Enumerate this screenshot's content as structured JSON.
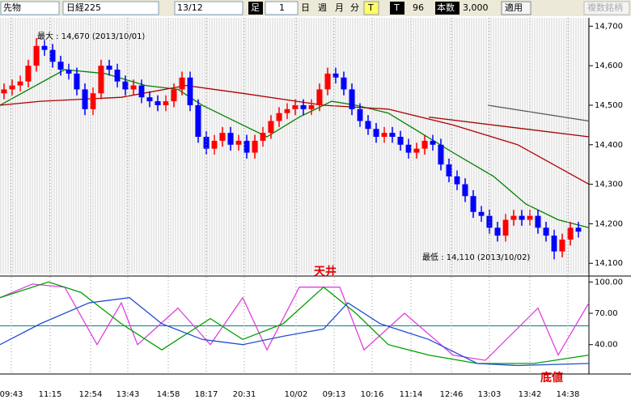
{
  "toolbar": {
    "symbol": "先物",
    "index": "日経225",
    "contract": "13/12",
    "bar_label": "足",
    "bar_value": "1",
    "day": "日",
    "week": "週",
    "month": "月",
    "minute": "分",
    "t1": "T",
    "t2": "T",
    "count": "96",
    "count_label": "本数",
    "count_max": "3,000",
    "apply": "適用",
    "multi": "複数銘柄"
  },
  "chart_data": [
    {
      "type": "candlestick",
      "up_color": "#ff0000",
      "down_color": "#0000ff",
      "xlim": [
        -0.5,
        72.3
      ],
      "ylim": [
        14080,
        14715
      ],
      "yticks": [
        {
          "value": 14100,
          "label": "14,100"
        },
        {
          "value": 14200,
          "label": "14,200"
        },
        {
          "value": 14300,
          "label": "14,300"
        },
        {
          "value": 14400,
          "label": "14,400"
        },
        {
          "value": 14500,
          "label": "14,500"
        },
        {
          "value": 14600,
          "label": "14,600"
        },
        {
          "value": 14700,
          "label": "14,700"
        }
      ],
      "candles": [
        [
          14530,
          14555,
          14515,
          14540
        ],
        [
          14540,
          14565,
          14525,
          14550
        ],
        [
          14550,
          14575,
          14535,
          14560
        ],
        [
          14560,
          14615,
          14545,
          14600
        ],
        [
          14600,
          14670,
          14585,
          14650
        ],
        [
          14650,
          14665,
          14625,
          14640
        ],
        [
          14640,
          14655,
          14595,
          14610
        ],
        [
          14610,
          14625,
          14575,
          14590
        ],
        [
          14590,
          14605,
          14565,
          14580
        ],
        [
          14580,
          14595,
          14525,
          14540
        ],
        [
          14540,
          14555,
          14475,
          14490
        ],
        [
          14490,
          14545,
          14475,
          14530
        ],
        [
          14530,
          14615,
          14515,
          14600
        ],
        [
          14600,
          14615,
          14575,
          14590
        ],
        [
          14590,
          14605,
          14545,
          14560
        ],
        [
          14560,
          14575,
          14525,
          14540
        ],
        [
          14540,
          14565,
          14525,
          14550
        ],
        [
          14550,
          14565,
          14505,
          14520
        ],
        [
          14520,
          14535,
          14495,
          14510
        ],
        [
          14510,
          14525,
          14485,
          14500
        ],
        [
          14500,
          14525,
          14485,
          14510
        ],
        [
          14510,
          14555,
          14495,
          14540
        ],
        [
          14540,
          14585,
          14525,
          14570
        ],
        [
          14570,
          14585,
          14485,
          14500
        ],
        [
          14500,
          14515,
          14405,
          14420
        ],
        [
          14420,
          14435,
          14375,
          14390
        ],
        [
          14390,
          14425,
          14375,
          14410
        ],
        [
          14410,
          14445,
          14395,
          14430
        ],
        [
          14430,
          14445,
          14385,
          14400
        ],
        [
          14400,
          14425,
          14385,
          14410
        ],
        [
          14410,
          14425,
          14365,
          14380
        ],
        [
          14380,
          14425,
          14365,
          14410
        ],
        [
          14410,
          14445,
          14395,
          14430
        ],
        [
          14430,
          14475,
          14415,
          14460
        ],
        [
          14460,
          14495,
          14445,
          14480
        ],
        [
          14480,
          14505,
          14465,
          14490
        ],
        [
          14490,
          14515,
          14475,
          14500
        ],
        [
          14500,
          14515,
          14475,
          14490
        ],
        [
          14490,
          14515,
          14475,
          14500
        ],
        [
          14500,
          14555,
          14485,
          14540
        ],
        [
          14540,
          14595,
          14525,
          14580
        ],
        [
          14580,
          14595,
          14555,
          14570
        ],
        [
          14570,
          14585,
          14525,
          14540
        ],
        [
          14540,
          14555,
          14475,
          14490
        ],
        [
          14490,
          14505,
          14445,
          14460
        ],
        [
          14460,
          14475,
          14425,
          14440
        ],
        [
          14440,
          14455,
          14405,
          14420
        ],
        [
          14420,
          14445,
          14405,
          14430
        ],
        [
          14430,
          14445,
          14405,
          14420
        ],
        [
          14420,
          14435,
          14385,
          14400
        ],
        [
          14400,
          14415,
          14365,
          14380
        ],
        [
          14380,
          14405,
          14365,
          14390
        ],
        [
          14390,
          14425,
          14375,
          14410
        ],
        [
          14410,
          14425,
          14385,
          14400
        ],
        [
          14400,
          14415,
          14335,
          14350
        ],
        [
          14350,
          14365,
          14305,
          14320
        ],
        [
          14320,
          14335,
          14285,
          14300
        ],
        [
          14300,
          14315,
          14255,
          14270
        ],
        [
          14270,
          14285,
          14215,
          14230
        ],
        [
          14230,
          14245,
          14205,
          14220
        ],
        [
          14220,
          14235,
          14175,
          14190
        ],
        [
          14190,
          14205,
          14155,
          14170
        ],
        [
          14170,
          14225,
          14155,
          14210
        ],
        [
          14210,
          14235,
          14195,
          14220
        ],
        [
          14220,
          14235,
          14195,
          14210
        ],
        [
          14210,
          14235,
          14195,
          14220
        ],
        [
          14220,
          14235,
          14175,
          14190
        ],
        [
          14190,
          14205,
          14155,
          14170
        ],
        [
          14170,
          14185,
          14110,
          14130
        ],
        [
          14130,
          14175,
          14115,
          14160
        ],
        [
          14160,
          14205,
          14145,
          14190
        ],
        [
          14190,
          14205,
          14165,
          14180
        ]
      ],
      "series": [
        {
          "color": "#008000",
          "x": [
            -0.5,
            7.5,
            12.5,
            17.5,
            21.5,
            24.5,
            29.5,
            32.5,
            36.5,
            40.5,
            43.5,
            47.5,
            51.5,
            55.5,
            60.5,
            64.5,
            68.5,
            72.3
          ],
          "values": [
            14500,
            14590,
            14580,
            14550,
            14540,
            14500,
            14450,
            14420,
            14470,
            14510,
            14500,
            14480,
            14430,
            14380,
            14320,
            14250,
            14210,
            14190
          ]
        },
        {
          "color": "#b00000",
          "x": [
            -0.5,
            4.5,
            14.5,
            22.5,
            29.5,
            39.5,
            47.5,
            55.5,
            63.5,
            72.3
          ],
          "values": [
            14500,
            14510,
            14520,
            14550,
            14530,
            14500,
            14490,
            14450,
            14400,
            14300
          ]
        },
        {
          "color": "#a00000",
          "x": [
            52.5,
            72.3
          ],
          "values": [
            14470,
            14420
          ]
        },
        {
          "color": "#555555",
          "x": [
            59.8,
            72.3
          ],
          "values": [
            14500,
            14460
          ]
        }
      ],
      "annotations": {
        "max": "最大 : 14,670 (2013/10/01)",
        "min": "最低 : 14,110 (2013/10/02)"
      }
    },
    {
      "type": "line",
      "xlim": [
        -0.5,
        72.3
      ],
      "ylim": [
        15,
        101
      ],
      "yticks": [
        {
          "value": 40,
          "label": "40.00"
        },
        {
          "value": 70,
          "label": "70.00"
        },
        {
          "value": 100,
          "label": "100.00"
        }
      ],
      "ref_level": 58,
      "ref_color": "#008080",
      "xticks": [
        {
          "value": 0.9,
          "label": "09:43"
        },
        {
          "value": 5.7,
          "label": "11:15"
        },
        {
          "value": 10.7,
          "label": "12:54"
        },
        {
          "value": 15.3,
          "label": "13:43"
        },
        {
          "value": 20.3,
          "label": "14:58"
        },
        {
          "value": 25,
          "label": "18:17"
        },
        {
          "value": 29.7,
          "label": "20:31"
        },
        {
          "value": 36.1,
          "label": "10/02"
        },
        {
          "value": 40.8,
          "label": "09:13"
        },
        {
          "value": 45.5,
          "label": "10:16"
        },
        {
          "value": 50.3,
          "label": "11:14"
        },
        {
          "value": 55.3,
          "label": "12:46"
        },
        {
          "value": 60,
          "label": "13:03"
        },
        {
          "value": 65,
          "label": "13:42"
        },
        {
          "value": 69.7,
          "label": "14:38"
        }
      ],
      "series": [
        {
          "color": "#e040e0",
          "x": [
            -0.5,
            3.5,
            7.5,
            11.5,
            14.5,
            16.5,
            21.5,
            25.5,
            29.5,
            32.5,
            36.5,
            41.5,
            44.5,
            49.5,
            55.5,
            59.5,
            66,
            68.5,
            72.3
          ],
          "values": [
            85,
            98,
            95,
            40,
            80,
            40,
            75,
            40,
            85,
            35,
            95,
            95,
            35,
            70,
            30,
            25,
            75,
            30,
            80
          ]
        },
        {
          "color": "#00a000",
          "x": [
            -0.5,
            5.5,
            9.5,
            14.5,
            19.5,
            25.5,
            29.5,
            34.5,
            39.5,
            43.5,
            47.5,
            52.5,
            58.5,
            65.5,
            72.3
          ],
          "values": [
            85,
            100,
            90,
            60,
            35,
            65,
            45,
            60,
            95,
            70,
            40,
            30,
            22,
            22,
            30
          ]
        },
        {
          "color": "#2050d0",
          "x": [
            -0.5,
            4.5,
            10.5,
            15.5,
            19.5,
            24.5,
            29.5,
            34.5,
            39.5,
            42.5,
            46.5,
            52.5,
            58.5,
            63.5,
            72.3
          ],
          "values": [
            40,
            60,
            80,
            85,
            60,
            45,
            40,
            48,
            55,
            80,
            60,
            45,
            22,
            20,
            22
          ]
        }
      ],
      "annotations": {
        "top": "天井",
        "bottom": "底値"
      }
    }
  ]
}
